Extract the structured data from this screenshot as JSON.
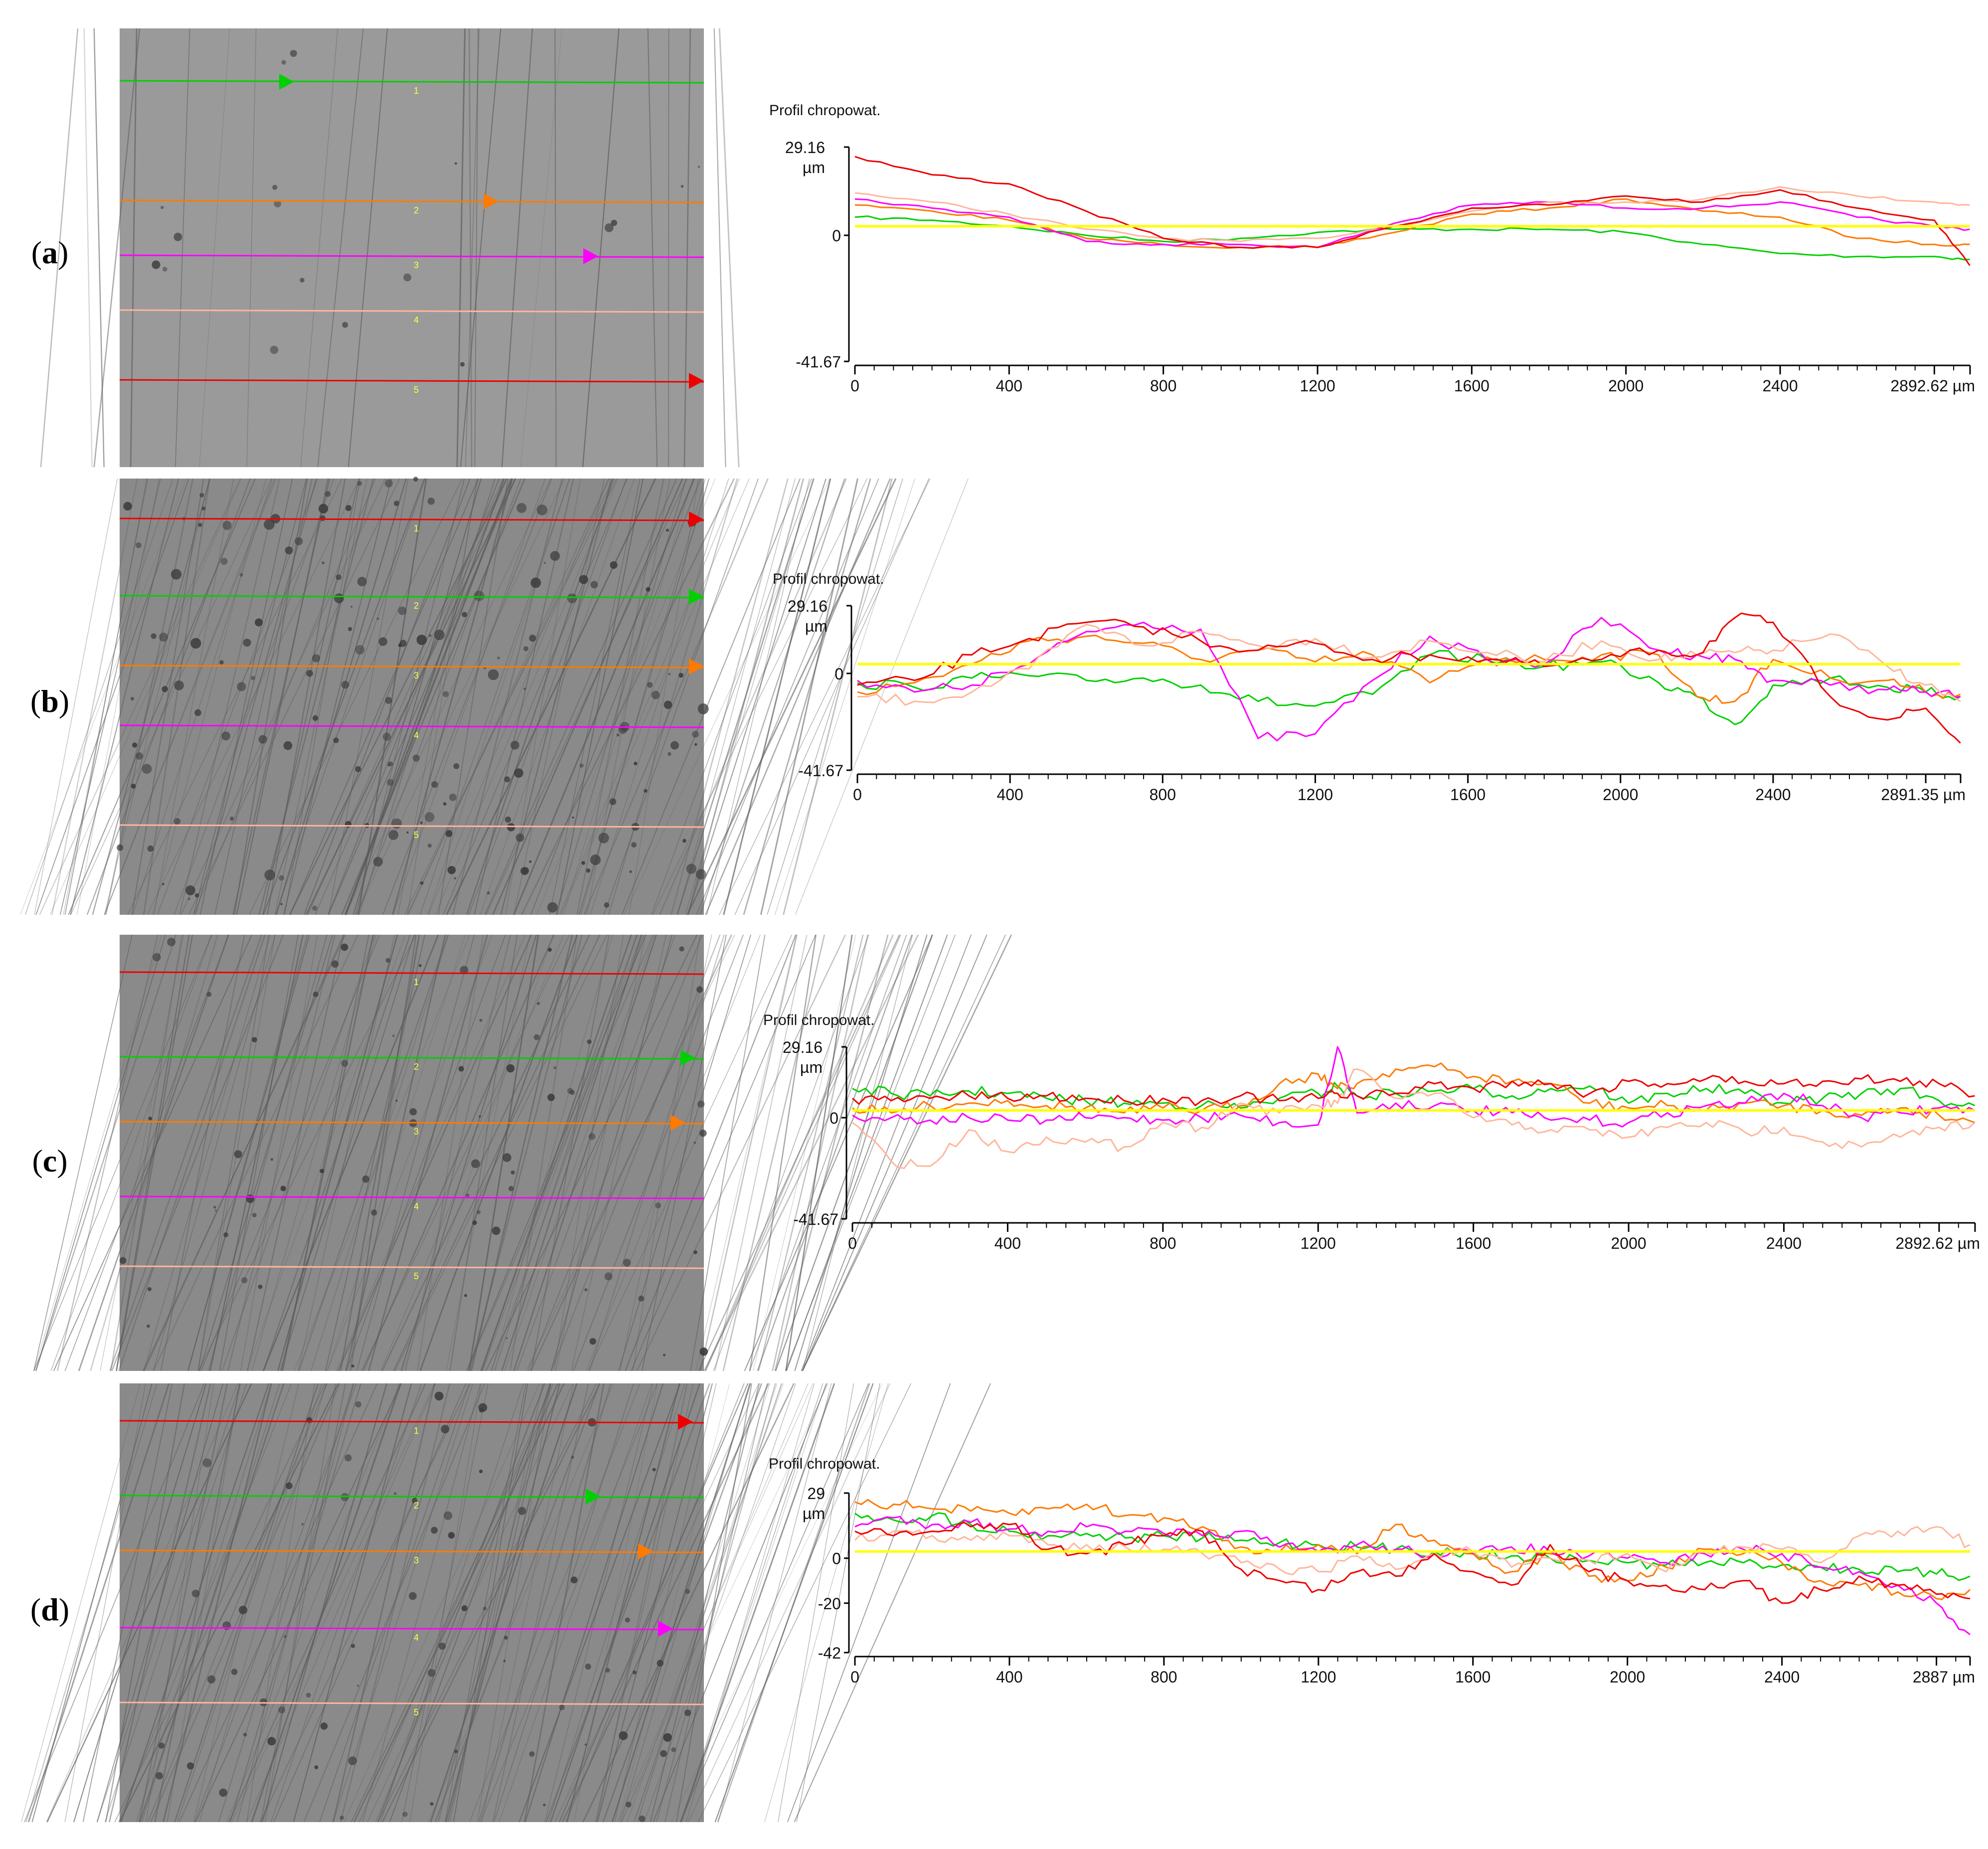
{
  "colors": {
    "profile_1": "#00d000",
    "profile_2": "#ff7a00",
    "profile_3": "#ff00ff",
    "profile_4": "#ffb69b",
    "profile_5": "#ee0000",
    "mean_line": "#ffff00"
  },
  "panels": [
    {
      "label": "a",
      "micrograph": {
        "line_numbers": [
          "1",
          "2",
          "3",
          "4",
          "5"
        ],
        "line_colors": [
          "#00d000",
          "#ff7a00",
          "#ff00ff",
          "#ffb69b",
          "#ee0000"
        ]
      },
      "chart": {
        "title": "Profil chropowat.",
        "y_top_label": "29.16",
        "y_unit": "µm",
        "y_zero_label": "0",
        "y_bottom_label": "-41.67",
        "x_ticks": [
          "0",
          "400",
          "800",
          "1200",
          "1600",
          "2000",
          "2400"
        ],
        "x_end_label": "2892.62 µm"
      }
    },
    {
      "label": "b",
      "micrograph": {
        "line_numbers": [
          "1",
          "2",
          "3",
          "4",
          "5"
        ],
        "line_colors": [
          "#ee0000",
          "#00d000",
          "#ff7a00",
          "#ff00ff",
          "#ffb69b"
        ]
      },
      "chart": {
        "title": "Profil chropowat.",
        "y_top_label": "29.16",
        "y_unit": "µm",
        "y_zero_label": "0",
        "y_bottom_label": "-41.67",
        "x_ticks": [
          "0",
          "400",
          "800",
          "1200",
          "1600",
          "2000",
          "2400"
        ],
        "x_end_label": "2891.35 µm"
      }
    },
    {
      "label": "c",
      "micrograph": {
        "line_numbers": [
          "1",
          "2",
          "3",
          "4",
          "5"
        ],
        "line_colors": [
          "#ee0000",
          "#00d000",
          "#ff7a00",
          "#ff00ff",
          "#ffb69b"
        ]
      },
      "chart": {
        "title": "Profil chropowat.",
        "y_top_label": "29.16",
        "y_unit": "µm",
        "y_zero_label": "0",
        "y_bottom_label": "-41.67",
        "x_ticks": [
          "0",
          "400",
          "800",
          "1200",
          "1600",
          "2000",
          "2400"
        ],
        "x_end_label": "2892.62 µm"
      }
    },
    {
      "label": "d",
      "micrograph": {
        "line_numbers": [
          "1",
          "2",
          "3",
          "4",
          "5"
        ],
        "line_colors": [
          "#ee0000",
          "#00d000",
          "#ff7a00",
          "#ff00ff",
          "#ffb69b"
        ]
      },
      "chart": {
        "title": "Profil chropowat.",
        "y_top_label": "29",
        "y_unit": "µm",
        "y_zero_label": "0",
        "y_mid_label": "-20",
        "y_bottom_label": "-42",
        "x_ticks": [
          "0",
          "400",
          "800",
          "1200",
          "1600",
          "2000",
          "2400"
        ],
        "x_end_label": "2887 µm"
      }
    }
  ],
  "chart_data": [
    {
      "type": "line",
      "title": "Profil chropowat.",
      "ylabel": "µm",
      "ylim": [
        -41.67,
        29.16
      ],
      "xlim": [
        0,
        2892.62
      ],
      "x": [
        0,
        200,
        400,
        600,
        800,
        1000,
        1200,
        1400,
        1600,
        1800,
        2000,
        2200,
        2400,
        2600,
        2800,
        2892
      ],
      "series": [
        {
          "values": [
            6,
            5,
            3,
            0,
            -2,
            -1,
            1,
            2,
            2,
            2,
            1,
            -3,
            -6,
            -7,
            -7,
            -8
          ]
        },
        {
          "values": [
            10,
            8,
            5,
            -1,
            -3,
            -4,
            -4,
            1,
            7,
            9,
            12,
            8,
            6,
            -1,
            -3,
            -3
          ]
        },
        {
          "values": [
            12,
            9,
            6,
            -2,
            -3,
            -3,
            -4,
            4,
            10,
            11,
            9,
            9,
            11,
            6,
            3,
            2
          ]
        },
        {
          "values": [
            14,
            11,
            7,
            2,
            -1,
            -2,
            -1,
            3,
            8,
            11,
            11,
            12,
            16,
            13,
            11,
            10
          ]
        },
        {
          "values": [
            26,
            20,
            17,
            8,
            -1,
            -4,
            -4,
            3,
            9,
            10,
            13,
            11,
            15,
            9,
            5,
            -10
          ]
        },
        {
          "values": [
            3,
            3,
            3,
            3,
            3,
            3,
            3,
            3,
            3,
            3,
            3,
            3,
            3,
            3,
            3,
            3
          ]
        }
      ]
    },
    {
      "type": "line",
      "title": "Profil chropowat.",
      "ylabel": "µm",
      "ylim": [
        -41.67,
        29.16
      ],
      "xlim": [
        0,
        2891.35
      ],
      "x": [
        0,
        150,
        300,
        450,
        600,
        750,
        900,
        1050,
        1200,
        1350,
        1500,
        1650,
        1800,
        1950,
        2100,
        2200,
        2300,
        2400,
        2550,
        2700,
        2800,
        2891
      ],
      "series": [
        {
          "values": [
            -4,
            -6,
            -2,
            -1,
            -3,
            -2,
            -5,
            -12,
            -14,
            -9,
            8,
            6,
            3,
            5,
            -4,
            -10,
            -22,
            -5,
            -2,
            -6,
            -8,
            -10
          ]
        },
        {
          "values": [
            -8,
            -4,
            4,
            14,
            16,
            13,
            6,
            10,
            5,
            8,
            -4,
            7,
            6,
            8,
            8,
            -10,
            -12,
            6,
            -2,
            -3,
            -8,
            -9
          ]
        },
        {
          "values": [
            -3,
            -8,
            -5,
            4,
            18,
            22,
            19,
            -28,
            -26,
            -3,
            16,
            6,
            4,
            24,
            10,
            8,
            6,
            -3,
            -5,
            -7,
            -8,
            -10
          ]
        },
        {
          "values": [
            -10,
            -12,
            -8,
            2,
            21,
            12,
            18,
            12,
            15,
            7,
            14,
            9,
            5,
            14,
            6,
            8,
            9,
            10,
            17,
            3,
            -5,
            -12
          ]
        },
        {
          "values": [
            -5,
            -3,
            8,
            15,
            22,
            20,
            14,
            10,
            13,
            6,
            8,
            6,
            3,
            6,
            10,
            8,
            24,
            22,
            -10,
            -20,
            -15,
            -30
          ]
        },
        {
          "values": [
            4,
            4,
            4,
            4,
            4,
            4,
            4,
            4,
            4,
            4,
            4,
            4,
            4,
            4,
            4,
            4,
            4,
            4,
            4,
            4,
            4,
            4
          ]
        }
      ]
    },
    {
      "type": "line",
      "title": "Profil chropowat.",
      "ylabel": "µm",
      "ylim": [
        -41.67,
        29.16
      ],
      "xlim": [
        0,
        2892.62
      ],
      "x": [
        0,
        100,
        200,
        300,
        400,
        500,
        600,
        700,
        800,
        900,
        1000,
        1100,
        1200,
        1250,
        1300,
        1400,
        1500,
        1600,
        1700,
        1800,
        1900,
        2000,
        2100,
        2200,
        2300,
        2400,
        2500,
        2600,
        2700,
        2800,
        2892
      ],
      "series": [
        {
          "values": [
            12,
            10,
            9,
            11,
            10,
            8,
            7,
            6,
            6,
            5,
            4,
            8,
            10,
            13,
            9,
            10,
            11,
            12,
            9,
            12,
            13,
            6,
            10,
            12,
            10,
            6,
            8,
            10,
            12,
            7,
            5
          ]
        },
        {
          "values": [
            4,
            2,
            5,
            6,
            7,
            5,
            4,
            2,
            4,
            3,
            5,
            14,
            18,
            12,
            14,
            20,
            21,
            17,
            15,
            14,
            6,
            4,
            5,
            3,
            6,
            5,
            3,
            1,
            4,
            1,
            -2
          ]
        },
        {
          "values": [
            1,
            0,
            -1,
            0,
            -1,
            -1,
            0,
            0,
            -1,
            0,
            1,
            -2,
            -3,
            30,
            2,
            6,
            5,
            3,
            2,
            -1,
            -1,
            -2,
            2,
            5,
            6,
            10,
            5,
            0,
            2,
            4,
            3
          ]
        },
        {
          "values": [
            -2,
            -18,
            -20,
            -5,
            -14,
            -8,
            -10,
            -12,
            -2,
            -4,
            6,
            2,
            5,
            6,
            20,
            8,
            10,
            0,
            -3,
            -5,
            -5,
            -8,
            -4,
            -2,
            -6,
            -4,
            -10,
            -12,
            -8,
            -4,
            -2
          ]
        },
        {
          "values": [
            8,
            7,
            8,
            9,
            8,
            9,
            8,
            7,
            8,
            7,
            9,
            7,
            8,
            10,
            9,
            10,
            14,
            12,
            15,
            14,
            10,
            15,
            14,
            16,
            15,
            14,
            15,
            16,
            15,
            14,
            9
          ]
        },
        {
          "values": [
            3,
            3,
            3,
            3,
            3,
            3,
            3,
            3,
            3,
            3,
            3,
            3,
            3,
            3,
            3,
            3,
            3,
            3,
            3,
            3,
            3,
            3,
            3,
            3,
            3,
            3,
            3,
            3,
            3,
            3,
            3
          ]
        }
      ]
    },
    {
      "type": "line",
      "title": "Profil chropowat.",
      "ylabel": "µm",
      "ylim": [
        -42,
        29
      ],
      "xlim": [
        0,
        2887
      ],
      "x": [
        0,
        100,
        200,
        300,
        400,
        500,
        600,
        700,
        800,
        900,
        1000,
        1100,
        1200,
        1300,
        1400,
        1500,
        1600,
        1700,
        1800,
        1900,
        2000,
        2100,
        2200,
        2300,
        2400,
        2500,
        2600,
        2700,
        2800,
        2887
      ],
      "series": [
        {
          "values": [
            20,
            17,
            19,
            15,
            12,
            10,
            11,
            9,
            10,
            9,
            8,
            7,
            6,
            5,
            4,
            3,
            2,
            1,
            0,
            -1,
            -2,
            -3,
            -2,
            -2,
            -3,
            -4,
            -5,
            -6,
            -7,
            -8
          ]
        },
        {
          "values": [
            25,
            24,
            22,
            21,
            20,
            22,
            24,
            19,
            18,
            14,
            5,
            3,
            6,
            2,
            15,
            8,
            2,
            -6,
            2,
            -8,
            -10,
            -4,
            4,
            2,
            -2,
            -10,
            -12,
            -15,
            -18,
            -14
          ]
        },
        {
          "values": [
            14,
            18,
            15,
            16,
            13,
            12,
            14,
            12,
            11,
            10,
            12,
            5,
            3,
            6,
            4,
            2,
            2,
            5,
            3,
            1,
            0,
            -2,
            2,
            4,
            2,
            -4,
            -6,
            -12,
            -20,
            -34
          ]
        },
        {
          "values": [
            8,
            12,
            10,
            8,
            10,
            6,
            6,
            5,
            4,
            2,
            -2,
            -5,
            -6,
            1,
            -5,
            2,
            3,
            -4,
            0,
            -1,
            2,
            -6,
            3,
            5,
            4,
            -2,
            10,
            12,
            14,
            6
          ]
        },
        {
          "values": [
            12,
            10,
            12,
            14,
            15,
            4,
            2,
            6,
            10,
            12,
            -5,
            -10,
            -14,
            -6,
            -8,
            2,
            -6,
            -12,
            6,
            -6,
            -10,
            -12,
            -14,
            -10,
            -20,
            -14,
            -8,
            -12,
            -16,
            -18
          ]
        },
        {
          "values": [
            3,
            3,
            3,
            3,
            3,
            3,
            3,
            3,
            3,
            3,
            3,
            3,
            3,
            3,
            3,
            3,
            3,
            3,
            3,
            3,
            3,
            3,
            3,
            3,
            3,
            3,
            3,
            3,
            3,
            3
          ]
        }
      ]
    }
  ]
}
